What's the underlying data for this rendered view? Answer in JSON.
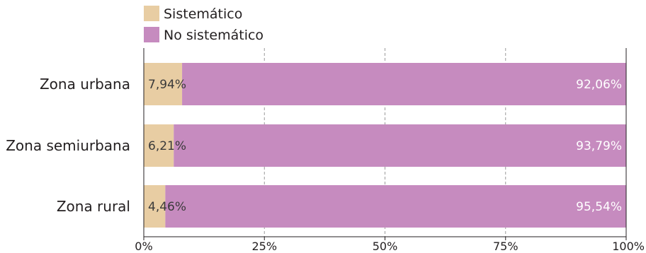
{
  "chart_data": {
    "type": "bar",
    "orientation": "horizontal",
    "stacked": true,
    "categories": [
      "Zona urbana",
      "Zona semiurbana",
      "Zona rural"
    ],
    "series": [
      {
        "name": "Sistemático",
        "values": [
          7.94,
          6.21,
          4.46
        ],
        "labels": [
          "7,94%",
          "6,21%",
          "4,46%"
        ],
        "color": "#e8cda3"
      },
      {
        "name": "No sistemático",
        "values": [
          92.06,
          93.79,
          95.54
        ],
        "labels": [
          "92,06%",
          "93,79%",
          "95,54%"
        ],
        "color": "#c68bbf"
      }
    ],
    "xlim": [
      0,
      100
    ],
    "ticks": [
      0,
      25,
      50,
      75,
      100
    ],
    "tick_labels": [
      "0%",
      "25%",
      "50%",
      "75%",
      "100%"
    ],
    "grid": "vertical dashed",
    "legend_position": "top-left"
  }
}
